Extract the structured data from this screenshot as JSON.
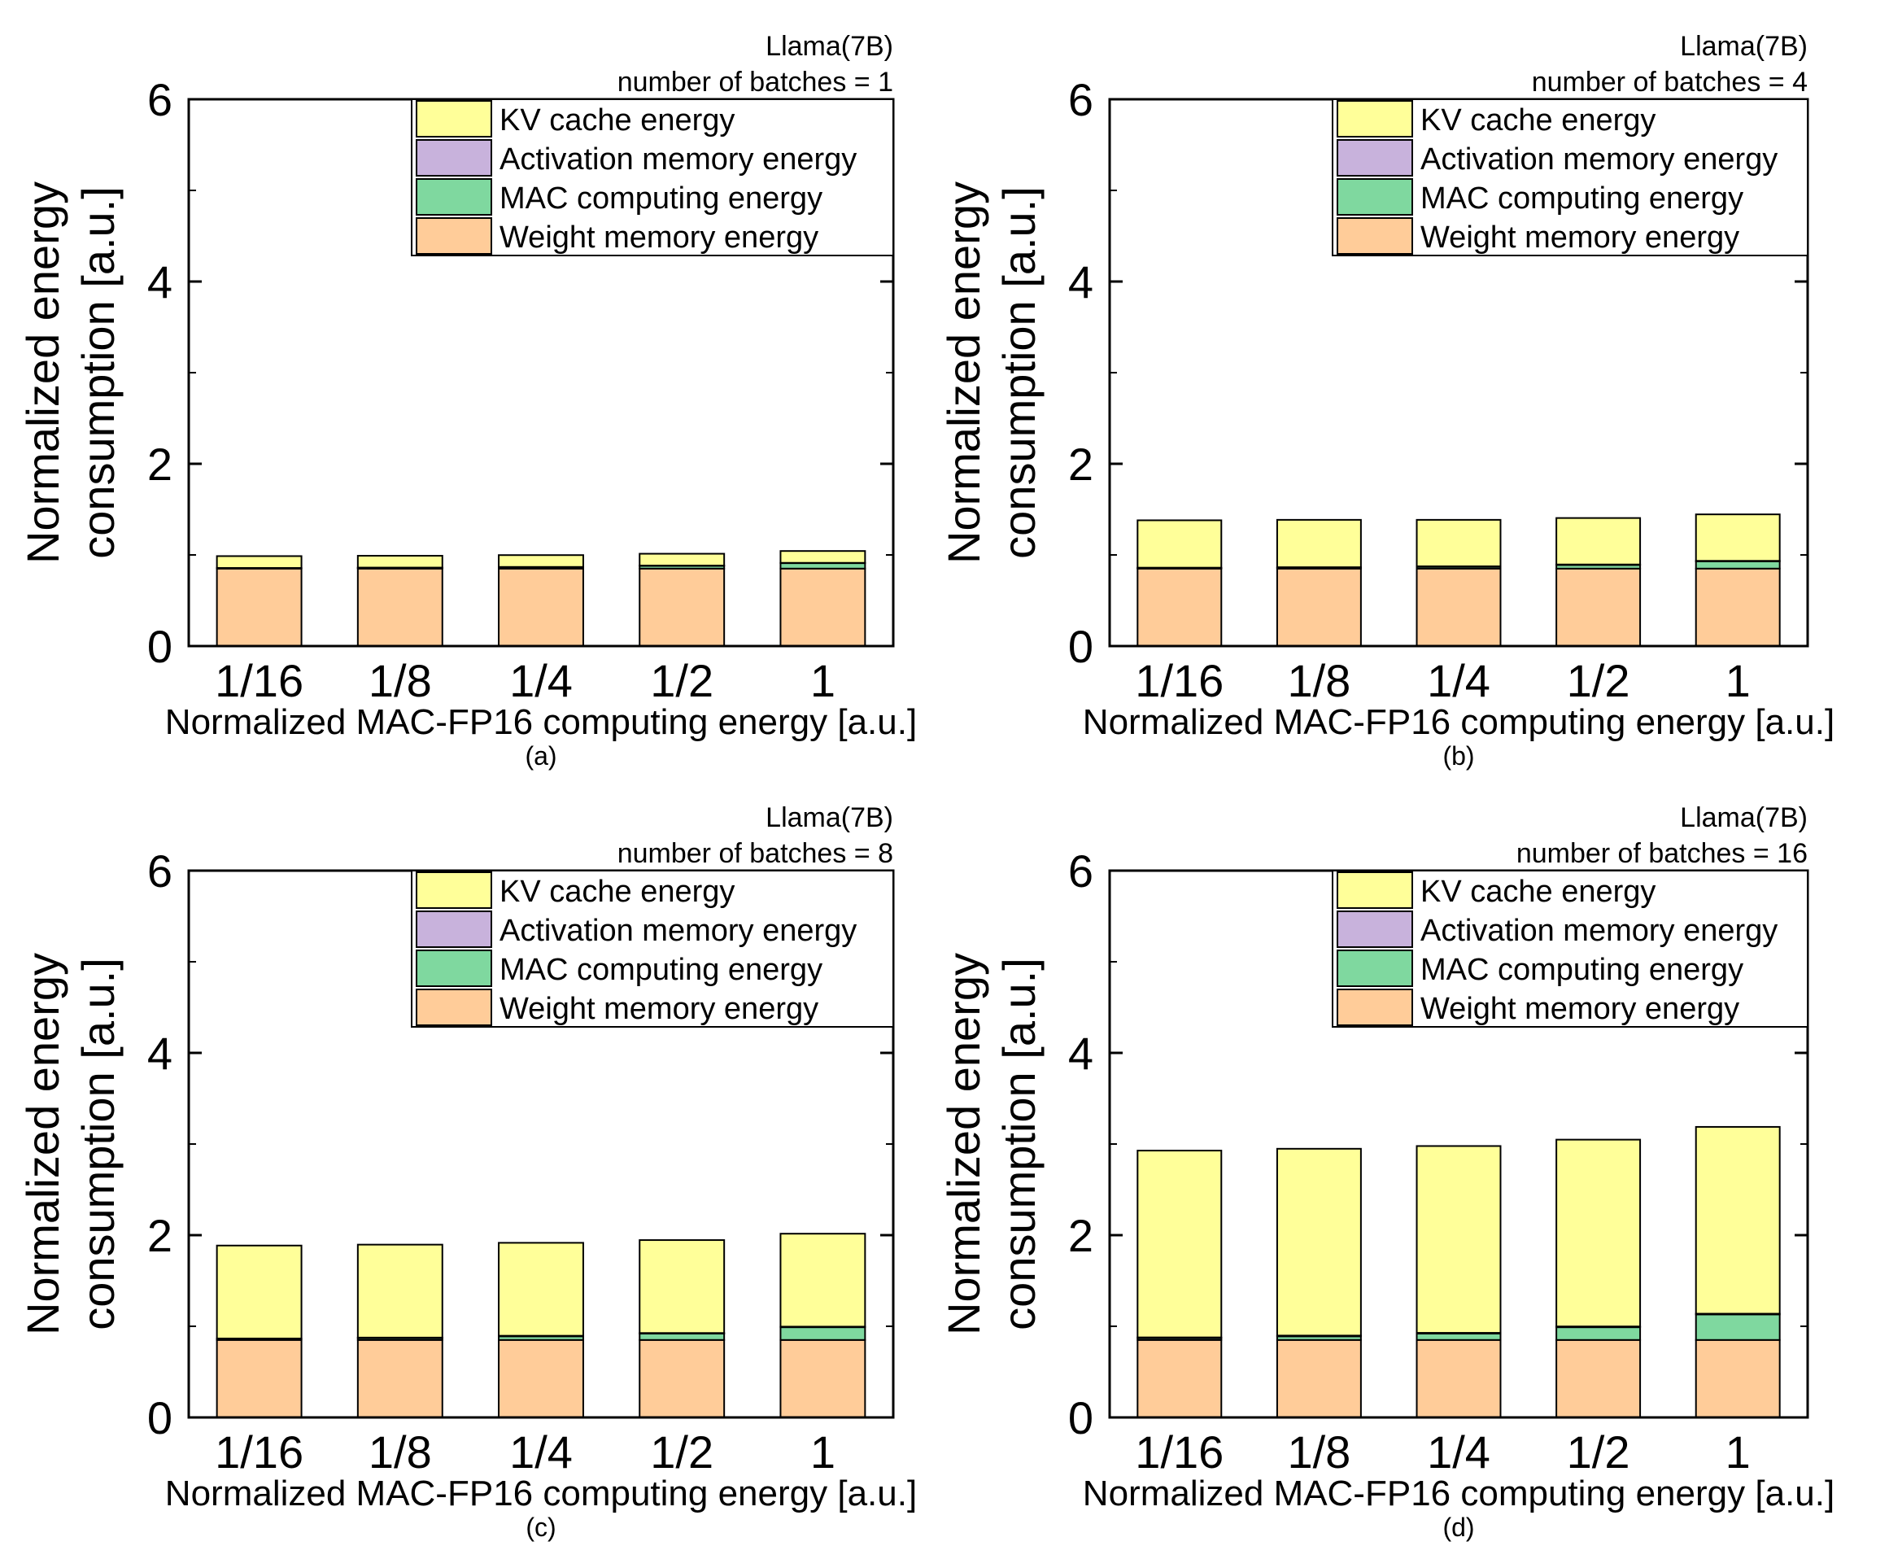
{
  "chart_data": [
    {
      "type": "bar",
      "stacked": true,
      "panel": "(a)",
      "annotation": [
        "Llama(7B)",
        "number of batches = 1"
      ],
      "categories": [
        "1/16",
        "1/8",
        "1/4",
        "1/2",
        "1"
      ],
      "series": [
        {
          "name": "Weight memory energy",
          "color": "#FFCC99",
          "values": [
            0.85,
            0.85,
            0.85,
            0.85,
            0.85
          ]
        },
        {
          "name": "MAC computing energy",
          "color": "#7FD89F",
          "values": [
            0.004,
            0.008,
            0.015,
            0.03,
            0.06
          ]
        },
        {
          "name": "Activation memory energy",
          "color": "#C8B2DC",
          "values": [
            0.003,
            0.003,
            0.003,
            0.003,
            0.003
          ]
        },
        {
          "name": "KV cache energy",
          "color": "#FFFF99",
          "values": [
            0.13,
            0.13,
            0.13,
            0.13,
            0.13
          ]
        }
      ],
      "legend_order": [
        "KV cache energy",
        "Activation memory energy",
        "MAC computing energy",
        "Weight memory energy"
      ],
      "xlabel": "Normalized MAC-FP16 computing energy [a.u.]",
      "ylabel": [
        "Normalized energy",
        "consumption [a.u.]"
      ],
      "ylim": [
        0,
        6
      ],
      "yticks": [
        "0",
        "2",
        "4",
        "6"
      ]
    },
    {
      "type": "bar",
      "stacked": true,
      "panel": "(b)",
      "annotation": [
        "Llama(7B)",
        "number of batches = 4"
      ],
      "categories": [
        "1/16",
        "1/8",
        "1/4",
        "1/2",
        "1"
      ],
      "series": [
        {
          "name": "Weight memory energy",
          "color": "#FFCC99",
          "values": [
            0.85,
            0.85,
            0.85,
            0.85,
            0.85
          ]
        },
        {
          "name": "MAC computing energy",
          "color": "#7FD89F",
          "values": [
            0.005,
            0.01,
            0.02,
            0.04,
            0.08
          ]
        },
        {
          "name": "Activation memory energy",
          "color": "#C8B2DC",
          "values": [
            0.005,
            0.005,
            0.005,
            0.005,
            0.005
          ]
        },
        {
          "name": "KV cache energy",
          "color": "#FFFF99",
          "values": [
            0.52,
            0.52,
            0.51,
            0.51,
            0.51
          ]
        }
      ],
      "legend_order": [
        "KV cache energy",
        "Activation memory energy",
        "MAC computing energy",
        "Weight memory energy"
      ],
      "xlabel": "Normalized MAC-FP16 computing energy [a.u.]",
      "ylabel": [
        "Normalized energy",
        "consumption [a.u.]"
      ],
      "ylim": [
        0,
        6
      ],
      "yticks": [
        "0",
        "2",
        "4",
        "6"
      ]
    },
    {
      "type": "bar",
      "stacked": true,
      "panel": "(c)",
      "annotation": [
        "Llama(7B)",
        "number of batches = 8"
      ],
      "categories": [
        "1/16",
        "1/8",
        "1/4",
        "1/2",
        "1"
      ],
      "series": [
        {
          "name": "Weight memory energy",
          "color": "#FFCC99",
          "values": [
            0.85,
            0.85,
            0.85,
            0.85,
            0.85
          ]
        },
        {
          "name": "MAC computing energy",
          "color": "#7FD89F",
          "values": [
            0.01,
            0.02,
            0.04,
            0.07,
            0.14
          ]
        },
        {
          "name": "Activation memory energy",
          "color": "#C8B2DC",
          "values": [
            0.006,
            0.006,
            0.006,
            0.006,
            0.006
          ]
        },
        {
          "name": "KV cache energy",
          "color": "#FFFF99",
          "values": [
            1.02,
            1.02,
            1.02,
            1.02,
            1.02
          ]
        }
      ],
      "legend_order": [
        "KV cache energy",
        "Activation memory energy",
        "MAC computing energy",
        "Weight memory energy"
      ],
      "xlabel": "Normalized MAC-FP16 computing energy [a.u.]",
      "ylabel": [
        "Normalized energy",
        "consumption [a.u.]"
      ],
      "ylim": [
        0,
        6
      ],
      "yticks": [
        "0",
        "2",
        "4",
        "6"
      ]
    },
    {
      "type": "bar",
      "stacked": true,
      "panel": "(d)",
      "annotation": [
        "Llama(7B)",
        "number of batches = 16"
      ],
      "categories": [
        "1/16",
        "1/8",
        "1/4",
        "1/2",
        "1"
      ],
      "series": [
        {
          "name": "Weight memory energy",
          "color": "#FFCC99",
          "values": [
            0.85,
            0.85,
            0.85,
            0.85,
            0.85
          ]
        },
        {
          "name": "MAC computing energy",
          "color": "#7FD89F",
          "values": [
            0.02,
            0.04,
            0.07,
            0.14,
            0.28
          ]
        },
        {
          "name": "Activation memory energy",
          "color": "#C8B2DC",
          "values": [
            0.008,
            0.008,
            0.008,
            0.008,
            0.008
          ]
        },
        {
          "name": "KV cache energy",
          "color": "#FFFF99",
          "values": [
            2.05,
            2.05,
            2.05,
            2.05,
            2.05
          ]
        }
      ],
      "legend_order": [
        "KV cache energy",
        "Activation memory energy",
        "MAC computing energy",
        "Weight memory energy"
      ],
      "xlabel": "Normalized MAC-FP16 computing energy [a.u.]",
      "ylabel": [
        "Normalized energy",
        "consumption [a.u.]"
      ],
      "ylim": [
        0,
        6
      ],
      "yticks": [
        "0",
        "2",
        "4",
        "6"
      ]
    }
  ]
}
